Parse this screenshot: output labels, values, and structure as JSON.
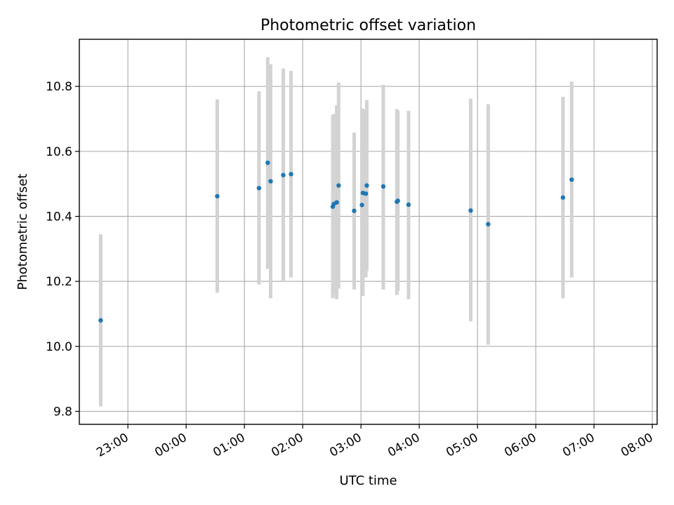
{
  "chart_data": {
    "type": "scatter",
    "title": "Photometric offset variation",
    "xlabel": "UTC time",
    "ylabel": "Photometric offset",
    "x_axis": {
      "kind": "time",
      "range": [
        "22:10",
        "32:05"
      ],
      "ticks": [
        {
          "t": "23:00",
          "label": "23:00"
        },
        {
          "t": "24:00",
          "label": "00:00"
        },
        {
          "t": "25:00",
          "label": "01:00"
        },
        {
          "t": "26:00",
          "label": "02:00"
        },
        {
          "t": "27:00",
          "label": "03:00"
        },
        {
          "t": "28:00",
          "label": "04:00"
        },
        {
          "t": "29:00",
          "label": "05:00"
        },
        {
          "t": "30:00",
          "label": "06:00"
        },
        {
          "t": "31:00",
          "label": "07:00"
        },
        {
          "t": "32:00",
          "label": "08:00"
        }
      ]
    },
    "y_axis": {
      "range": [
        9.76,
        10.945
      ],
      "ticks": [
        9.8,
        10.0,
        10.2,
        10.4,
        10.6,
        10.8
      ],
      "tick_labels": [
        "9.8",
        "10.0",
        "10.2",
        "10.4",
        "10.6",
        "10.8"
      ]
    },
    "grid": true,
    "marker_color": "#1f77b4",
    "errorbar_color": "#d3d3d3",
    "points": [
      {
        "t": "22:32",
        "y": 10.08,
        "lo": 9.815,
        "hi": 10.345
      },
      {
        "t": "24:32",
        "y": 10.462,
        "lo": 10.165,
        "hi": 10.76
      },
      {
        "t": "25:15",
        "y": 10.487,
        "lo": 10.19,
        "hi": 10.785
      },
      {
        "t": "25:24",
        "y": 10.565,
        "lo": 10.238,
        "hi": 10.89
      },
      {
        "t": "25:27",
        "y": 10.508,
        "lo": 10.148,
        "hi": 10.868
      },
      {
        "t": "25:40",
        "y": 10.527,
        "lo": 10.198,
        "hi": 10.855
      },
      {
        "t": "25:48",
        "y": 10.53,
        "lo": 10.212,
        "hi": 10.848
      },
      {
        "t": "26:31",
        "y": 10.43,
        "lo": 10.148,
        "hi": 10.712
      },
      {
        "t": "26:32",
        "y": 10.438,
        "lo": 10.16,
        "hi": 10.715
      },
      {
        "t": "26:35",
        "y": 10.443,
        "lo": 10.145,
        "hi": 10.742
      },
      {
        "t": "26:37",
        "y": 10.495,
        "lo": 10.178,
        "hi": 10.812
      },
      {
        "t": "26:53",
        "y": 10.417,
        "lo": 10.175,
        "hi": 10.658
      },
      {
        "t": "27:01",
        "y": 10.435,
        "lo": 10.195,
        "hi": 10.732
      },
      {
        "t": "27:02",
        "y": 10.472,
        "lo": 10.155,
        "hi": 10.73
      },
      {
        "t": "27:05",
        "y": 10.47,
        "lo": 10.212,
        "hi": 10.73
      },
      {
        "t": "27:06",
        "y": 10.495,
        "lo": 10.232,
        "hi": 10.758
      },
      {
        "t": "27:23",
        "y": 10.492,
        "lo": 10.175,
        "hi": 10.805
      },
      {
        "t": "27:37",
        "y": 10.445,
        "lo": 10.158,
        "hi": 10.73
      },
      {
        "t": "27:38",
        "y": 10.448,
        "lo": 10.17,
        "hi": 10.725
      },
      {
        "t": "27:49",
        "y": 10.436,
        "lo": 10.145,
        "hi": 10.725
      },
      {
        "t": "28:53",
        "y": 10.418,
        "lo": 10.077,
        "hi": 10.762
      },
      {
        "t": "29:11",
        "y": 10.376,
        "lo": 10.005,
        "hi": 10.745
      },
      {
        "t": "30:28",
        "y": 10.458,
        "lo": 10.148,
        "hi": 10.768
      },
      {
        "t": "30:37",
        "y": 10.513,
        "lo": 10.212,
        "hi": 10.815
      }
    ]
  }
}
